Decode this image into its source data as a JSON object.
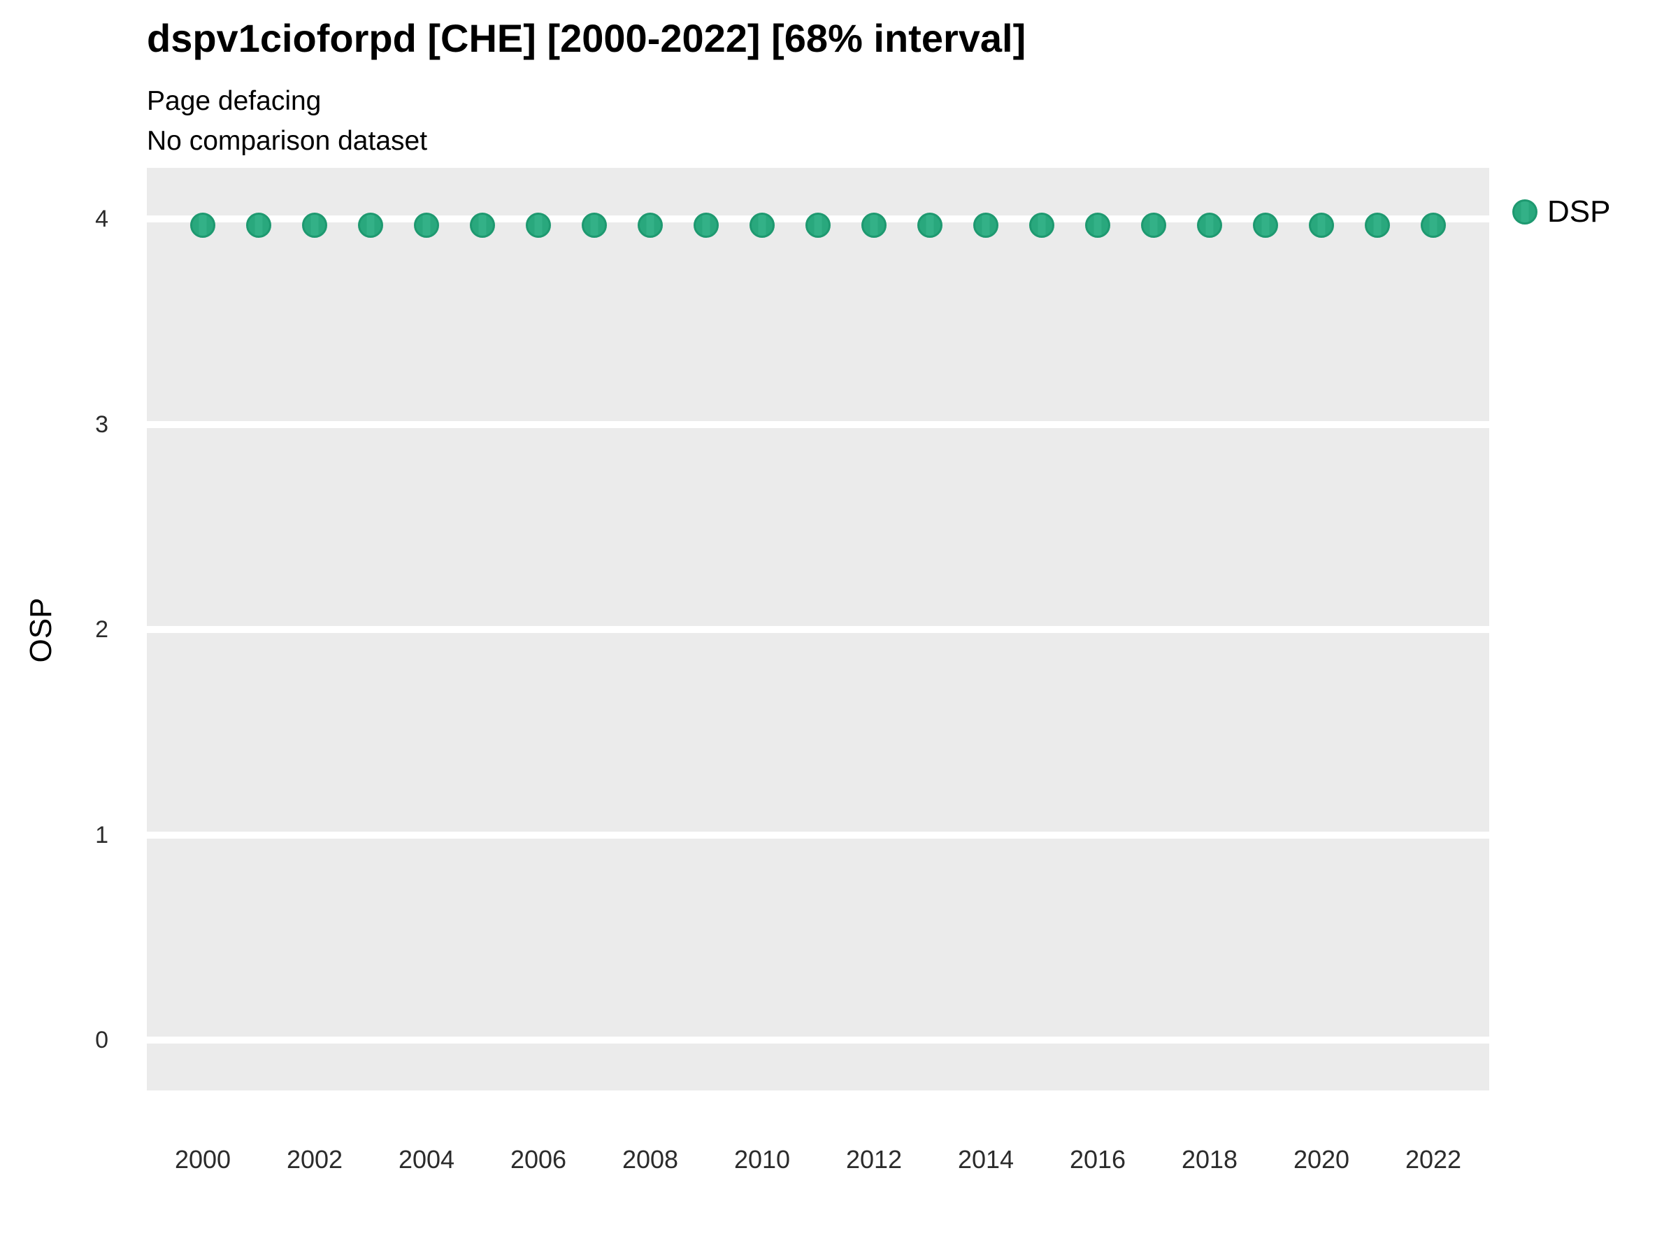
{
  "header": {
    "title": "dspv1cioforpd [CHE] [2000-2022] [68% interval]",
    "subtitle": "Page defacing",
    "note": "No comparison dataset"
  },
  "axes": {
    "y_label": "OSP",
    "y_ticks": [
      4,
      3,
      2,
      1,
      0
    ],
    "x_ticks": [
      2000,
      2002,
      2004,
      2006,
      2008,
      2010,
      2012,
      2014,
      2016,
      2018,
      2020,
      2022
    ]
  },
  "legend": {
    "items": [
      {
        "label": "DSP",
        "color": "#29A87D"
      }
    ]
  },
  "colors": {
    "panel_background": "#EBEBEB",
    "gridline": "#FFFFFF",
    "point_fill": "#29A87D",
    "point_fill_stripe": "#33B187",
    "point_stroke": "#1E9970",
    "tick_text": "#2b2b2b",
    "title_text": "#000000"
  },
  "chart_data": {
    "type": "scatter",
    "title": "dspv1cioforpd [CHE] [2000-2022] [68% interval]",
    "subtitle": "Page defacing",
    "note": "No comparison dataset",
    "xlabel": "",
    "ylabel": "OSP",
    "x": [
      2000,
      2001,
      2002,
      2003,
      2004,
      2005,
      2006,
      2007,
      2008,
      2009,
      2010,
      2011,
      2012,
      2013,
      2014,
      2015,
      2016,
      2017,
      2018,
      2019,
      2020,
      2021,
      2022
    ],
    "series": [
      {
        "name": "DSP",
        "values": [
          3.97,
          3.97,
          3.97,
          3.97,
          3.97,
          3.97,
          3.97,
          3.97,
          3.97,
          3.97,
          3.97,
          3.97,
          3.97,
          3.97,
          3.97,
          3.97,
          3.97,
          3.97,
          3.97,
          3.97,
          3.97,
          3.97,
          3.97
        ]
      }
    ],
    "xlim": [
      1999,
      2023
    ],
    "ylim": [
      -0.25,
      4.25
    ],
    "y_ticks": [
      0,
      1,
      2,
      3,
      4
    ],
    "x_ticks": [
      2000,
      2002,
      2004,
      2006,
      2008,
      2010,
      2012,
      2014,
      2016,
      2018,
      2020,
      2022
    ],
    "grid": "horizontal-major-only",
    "legend_position": "right"
  }
}
